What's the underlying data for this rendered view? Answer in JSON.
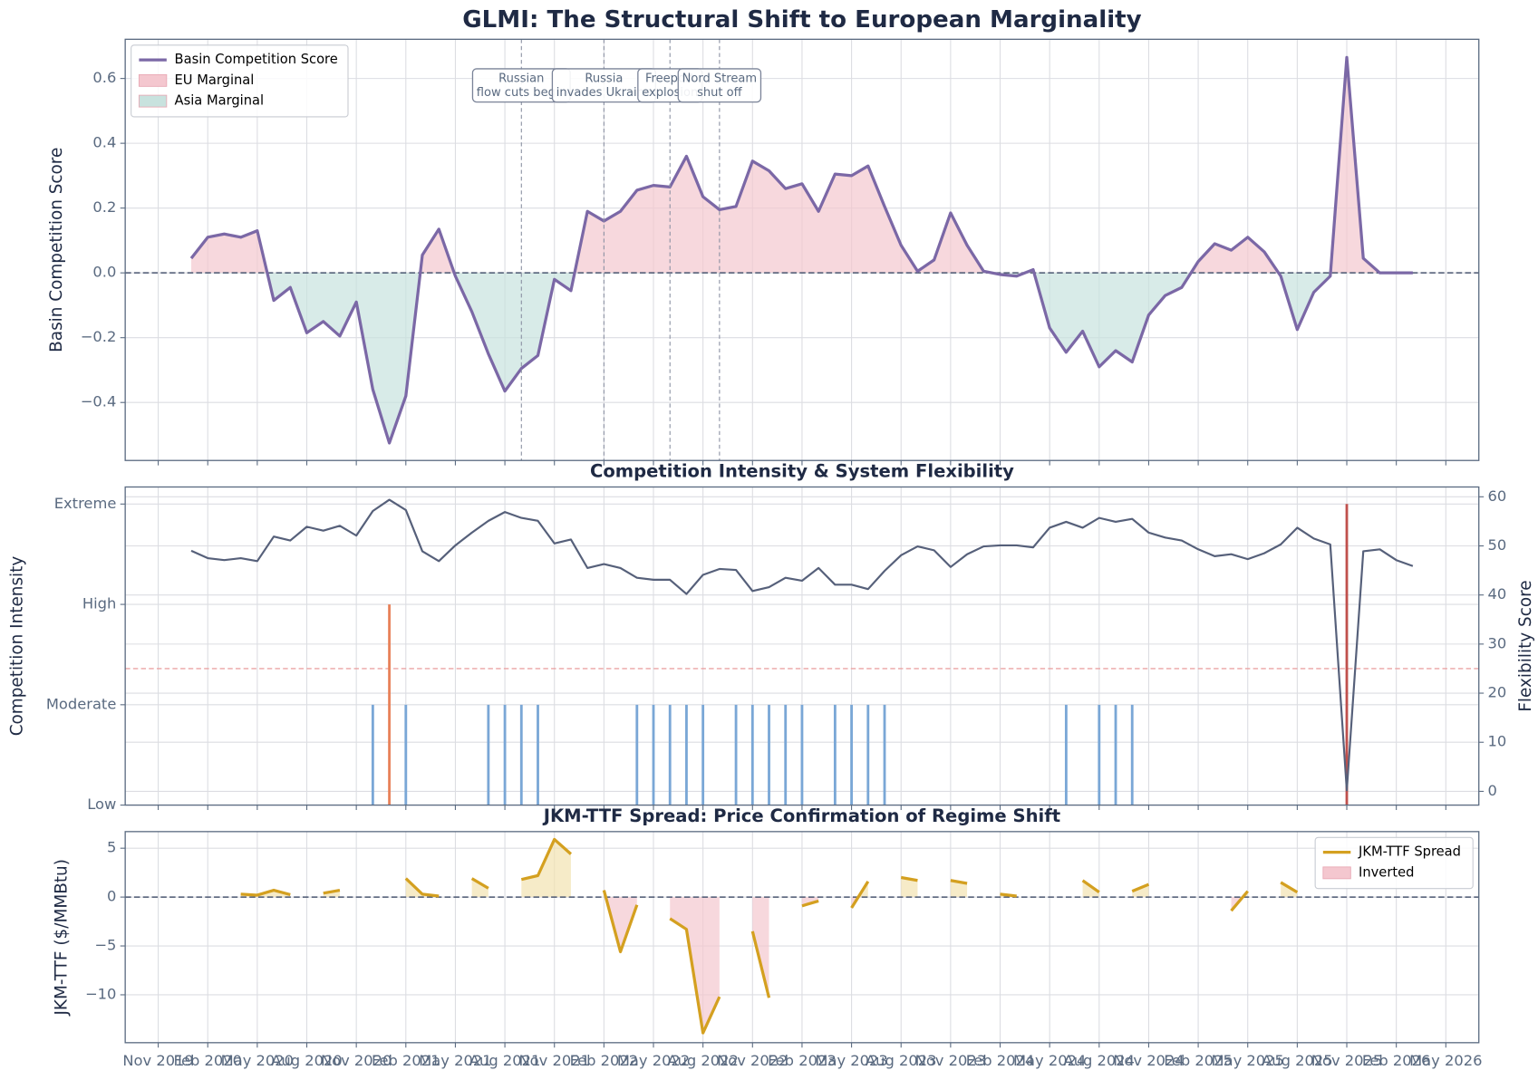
{
  "chart_data": [
    {
      "type": "area-line",
      "title": "GLMI: The Structural Shift to European Marginality",
      "ylabel": "Basin Competition Score",
      "x": [
        "2020-01",
        "2020-02",
        "2020-03",
        "2020-04",
        "2020-05",
        "2020-06",
        "2020-07",
        "2020-08",
        "2020-09",
        "2020-10",
        "2020-11",
        "2020-12",
        "2021-01",
        "2021-02",
        "2021-03",
        "2021-04",
        "2021-05",
        "2021-06",
        "2021-07",
        "2021-08",
        "2021-09",
        "2021-10",
        "2021-11",
        "2021-12",
        "2022-01",
        "2022-02",
        "2022-03",
        "2022-04",
        "2022-05",
        "2022-06",
        "2022-07",
        "2022-08",
        "2022-09",
        "2022-10",
        "2022-11",
        "2022-12",
        "2023-01",
        "2023-02",
        "2023-03",
        "2023-04",
        "2023-05",
        "2023-06",
        "2023-07",
        "2023-08",
        "2023-09",
        "2023-10",
        "2023-11",
        "2023-12",
        "2024-01",
        "2024-02",
        "2024-03",
        "2024-04",
        "2024-05",
        "2024-06",
        "2024-07",
        "2024-08",
        "2024-09",
        "2024-10",
        "2024-11",
        "2024-12",
        "2025-01",
        "2025-02",
        "2025-03",
        "2025-04",
        "2025-05",
        "2025-06",
        "2025-07",
        "2025-08",
        "2025-09",
        "2025-10",
        "2025-11",
        "2025-12",
        "2026-01",
        "2026-02",
        "2026-03"
      ],
      "xlim": [
        "2019-09",
        "2026-07"
      ],
      "xticks": [
        {
          "value": "2019-11",
          "label": "Nov 2019"
        },
        {
          "value": "2020-02",
          "label": "Feb 2020"
        },
        {
          "value": "2020-05",
          "label": "May 2020"
        },
        {
          "value": "2020-08",
          "label": "Aug 2020"
        },
        {
          "value": "2020-11",
          "label": "Nov 2020"
        },
        {
          "value": "2021-02",
          "label": "Feb 2021"
        },
        {
          "value": "2021-05",
          "label": "May 2021"
        },
        {
          "value": "2021-08",
          "label": "Aug 2021"
        },
        {
          "value": "2021-11",
          "label": "Nov 2021"
        },
        {
          "value": "2022-02",
          "label": "Feb 2022"
        },
        {
          "value": "2022-05",
          "label": "May 2022"
        },
        {
          "value": "2022-08",
          "label": "Aug 2022"
        },
        {
          "value": "2022-11",
          "label": "Nov 2022"
        },
        {
          "value": "2023-02",
          "label": "Feb 2023"
        },
        {
          "value": "2023-05",
          "label": "May 2023"
        },
        {
          "value": "2023-08",
          "label": "Aug 2023"
        },
        {
          "value": "2023-11",
          "label": "Nov 2023"
        },
        {
          "value": "2024-02",
          "label": "Feb 2024"
        },
        {
          "value": "2024-05",
          "label": "May 2024"
        },
        {
          "value": "2024-08",
          "label": "Aug 2024"
        },
        {
          "value": "2024-11",
          "label": "Nov 2024"
        },
        {
          "value": "2025-02",
          "label": "Feb 2025"
        },
        {
          "value": "2025-05",
          "label": "May 2025"
        },
        {
          "value": "2025-08",
          "label": "Aug 2025"
        },
        {
          "value": "2025-11",
          "label": "Nov 2025"
        },
        {
          "value": "2026-02",
          "label": "Feb 2026"
        },
        {
          "value": "2026-05",
          "label": "May 2026"
        }
      ],
      "ylim": [
        -0.579,
        0.721
      ],
      "yticks": [
        {
          "value": -0.4,
          "label": "−0.4"
        },
        {
          "value": -0.2,
          "label": "−0.2"
        },
        {
          "value": 0,
          "label": "0.0"
        },
        0.2,
        0.4,
        0.6
      ],
      "grid": true,
      "legend": "upper left",
      "baseline": 0,
      "series": [
        {
          "name": "Basin Competition Score",
          "color": "#7b68a6",
          "values": [
            0.045,
            0.11,
            0.12,
            0.11,
            0.13,
            -0.085,
            -0.045,
            -0.185,
            -0.15,
            -0.195,
            -0.09,
            -0.36,
            -0.525,
            -0.38,
            0.055,
            0.135,
            -0.01,
            -0.12,
            -0.25,
            -0.365,
            -0.295,
            -0.255,
            -0.02,
            -0.055,
            0.19,
            0.16,
            0.19,
            0.255,
            0.27,
            0.265,
            0.36,
            0.235,
            0.195,
            0.205,
            0.345,
            0.315,
            0.26,
            0.275,
            0.19,
            0.305,
            0.3,
            0.33,
            0.205,
            0.085,
            0.005,
            0.04,
            0.185,
            0.085,
            0.005,
            -0.005,
            -0.01,
            0.01,
            -0.17,
            -0.245,
            -0.18,
            -0.29,
            -0.24,
            -0.275,
            -0.13,
            -0.07,
            -0.045,
            0.035,
            0.09,
            0.07,
            0.11,
            0.065,
            -0.01,
            -0.175,
            -0.06,
            -0.01,
            0.665,
            0.045,
            0,
            0,
            0
          ]
        }
      ],
      "fills": [
        {
          "name": "EU Marginal",
          "color": "#f4c7cf",
          "where": "above"
        },
        {
          "name": "Asia Marginal",
          "color": "#c8e2de",
          "where": "below"
        }
      ],
      "annotations": [
        {
          "x": "2021-09",
          "text": [
            "Russian",
            "flow cuts begin"
          ]
        },
        {
          "x": "2022-02",
          "text": [
            "Russia",
            "invades Ukraine"
          ]
        },
        {
          "x": "2022-06",
          "text": [
            "Freeport",
            "explosion"
          ]
        },
        {
          "x": "2022-09",
          "text": [
            "Nord Stream",
            "shut off"
          ]
        }
      ]
    },
    {
      "type": "stem",
      "title": "Competition Intensity & System Flexibility",
      "ylabel": "Competition Intensity",
      "y2label": "Flexibility Score",
      "ylim": [
        0,
        3.17
      ],
      "yticks": [
        {
          "value": 0,
          "label": "Low"
        },
        {
          "value": 1,
          "label": "Moderate"
        },
        {
          "value": 2,
          "label": "High"
        },
        {
          "value": 3,
          "label": "Extreme"
        }
      ],
      "y2lim": [
        -2.8,
        62
      ],
      "y2ticks": [
        0,
        10,
        20,
        30,
        40,
        50,
        60
      ],
      "grid": true,
      "threshold": {
        "value": 25,
        "axis": "y2",
        "color": "#eba3a3"
      },
      "series": [
        {
          "colors": [
            "#7aa7d6",
            "#e8825a",
            "#c0504d"
          ],
          "values": [
            null,
            null,
            null,
            null,
            null,
            null,
            null,
            null,
            null,
            null,
            null,
            1,
            2,
            1,
            null,
            null,
            null,
            null,
            1,
            1,
            1,
            1,
            null,
            null,
            null,
            null,
            null,
            1,
            1,
            1,
            1,
            1,
            null,
            1,
            1,
            1,
            1,
            1,
            null,
            1,
            1,
            1,
            1,
            null,
            null,
            null,
            null,
            null,
            null,
            null,
            null,
            null,
            null,
            1,
            null,
            1,
            1,
            1,
            null,
            null,
            null,
            null,
            null,
            null,
            null,
            null,
            null,
            null,
            null,
            null,
            3,
            null,
            null,
            null,
            null
          ]
        },
        {
          "axis": "y2",
          "color": "#56607a",
          "values": [
            49,
            47.5,
            47.1,
            47.5,
            46.9,
            51.9,
            51.1,
            53.9,
            53.1,
            54.1,
            52.1,
            57.1,
            59.4,
            57.3,
            48.9,
            46.9,
            50.1,
            52.7,
            55.1,
            56.9,
            55.7,
            55.1,
            50.5,
            51.3,
            45.5,
            46.3,
            45.5,
            43.5,
            43.1,
            43.1,
            40.2,
            44.1,
            45.3,
            45.1,
            40.8,
            41.6,
            43.5,
            42.9,
            45.5,
            42.1,
            42.1,
            41.2,
            44.9,
            48.1,
            49.9,
            49.1,
            45.7,
            48.3,
            49.9,
            50.1,
            50.1,
            49.7,
            53.7,
            54.9,
            53.7,
            55.7,
            54.9,
            55.5,
            52.7,
            51.7,
            51.1,
            49.3,
            47.9,
            48.3,
            47.3,
            48.5,
            50.3,
            53.7,
            51.5,
            50.3,
            0.2,
            48.9,
            49.3,
            47.1,
            45.9
          ]
        }
      ]
    },
    {
      "type": "area-line",
      "title": "JKM-TTF Spread: Price Confirmation of Regime Shift",
      "ylabel": "JKM-TTF ($/MMBtu)",
      "ylim": [
        -14.9,
        6.7
      ],
      "yticks": [
        {
          "value": -10,
          "label": "−10"
        },
        {
          "value": -5,
          "label": "−5"
        },
        0,
        5
      ],
      "grid": true,
      "legend": "upper right",
      "baseline": 0,
      "series": [
        {
          "name": "JKM-TTF Spread",
          "color": "#d4a020",
          "values": [
            null,
            null,
            null,
            0.3,
            0.2,
            0.7,
            0.25,
            null,
            0.4,
            0.7,
            null,
            null,
            null,
            1.9,
            0.3,
            0.1,
            null,
            1.9,
            0.9,
            null,
            1.8,
            2.2,
            5.9,
            4.4,
            null,
            0.7,
            -5.6,
            -0.8,
            null,
            -2.2,
            -3.3,
            -13.9,
            -10.2,
            null,
            -3.5,
            -10.3,
            null,
            -0.9,
            -0.4,
            null,
            -1.1,
            1.6,
            null,
            2.0,
            1.7,
            null,
            1.7,
            1.4,
            null,
            0.3,
            0.1,
            null,
            null,
            null,
            1.7,
            0.5,
            null,
            0.6,
            1.3,
            null,
            null,
            null,
            null,
            -1.4,
            0.6,
            null,
            1.5,
            0.5,
            null,
            null,
            null,
            null,
            null,
            null,
            null
          ]
        }
      ],
      "fills": [
        {
          "color": "#f2e2b0",
          "where": "above"
        },
        {
          "name": "Inverted",
          "color": "#f4c7cf",
          "where": "below"
        }
      ]
    }
  ]
}
